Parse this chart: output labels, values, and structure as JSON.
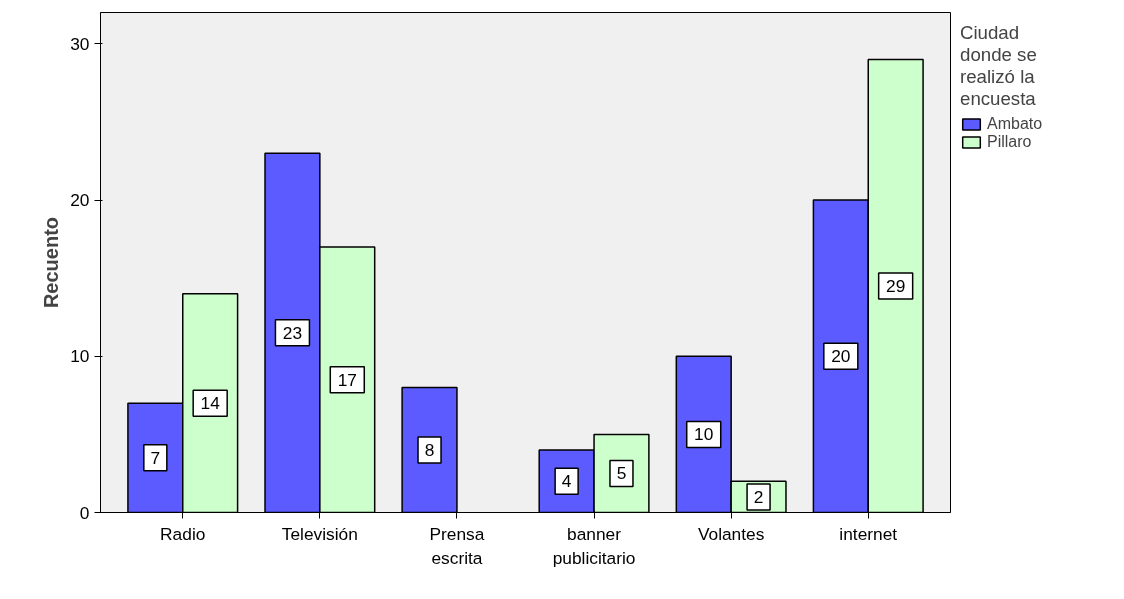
{
  "chart_data": {
    "type": "bar",
    "ylabel": "Recuento",
    "legend_title": "Ciudad\ndonde se\nrealizó la\nencuesta",
    "categories": [
      "Radio",
      "Televisión",
      "Prensa\nescrita",
      "banner\npublicitario",
      "Volantes",
      "internet"
    ],
    "series": [
      {
        "name": "Ambato",
        "color": "#5b5bff",
        "values": [
          7,
          23,
          8,
          4,
          10,
          20
        ]
      },
      {
        "name": "Pillaro",
        "color": "#ccffcc",
        "values": [
          14,
          17,
          null,
          5,
          2,
          29
        ]
      }
    ],
    "ylim": [
      0,
      32
    ],
    "yticks": [
      0,
      10,
      20,
      30
    ],
    "grid": false,
    "legend": "right",
    "data_labels": true
  }
}
